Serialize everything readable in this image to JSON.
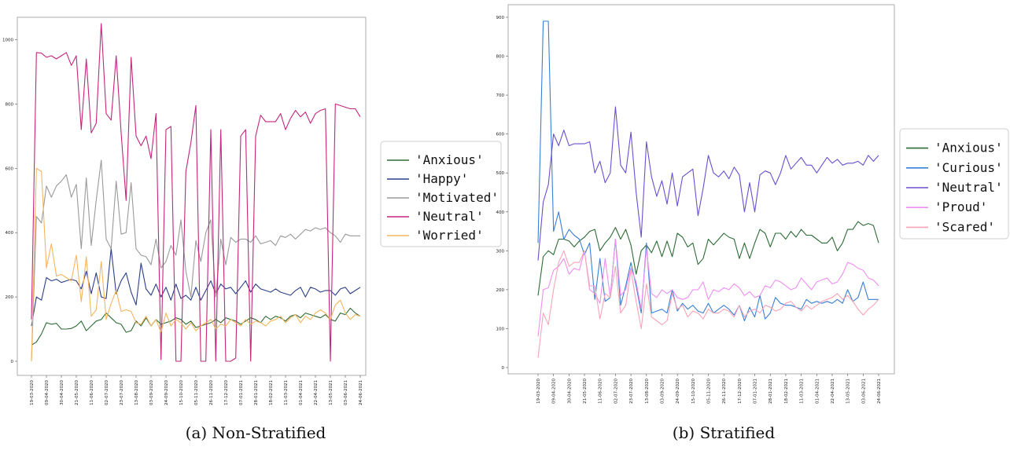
{
  "captions": [
    "(a) Non-Stratified",
    "(b) Stratified"
  ],
  "chart_data": [
    {
      "type": "line",
      "title": "",
      "xlabel": "",
      "ylabel": "",
      "ylim": [
        0,
        1050
      ],
      "yticks": [
        0,
        200,
        400,
        600,
        800,
        1000
      ],
      "x_tick_labels": [
        "19-03-2020",
        "09-04-2020",
        "30-04-2020",
        "21-05-2020",
        "11-06-2020",
        "02-07-2020",
        "23-07-2020",
        "13-08-2020",
        "03-09-2020",
        "24-09-2020",
        "15-10-2020",
        "05-11-2020",
        "26-11-2020",
        "17-12-2020",
        "07-01-2021",
        "28-01-2021",
        "18-02-2021",
        "11-03-2021",
        "01-04-2021",
        "22-04-2021",
        "13-05-2021",
        "03-06-2021",
        "24-06-2021"
      ],
      "n_points": 67,
      "legend": "right",
      "grid": false,
      "series": [
        {
          "name": "'Anxious'",
          "color": "#2e6b36",
          "values": [
            50,
            60,
            85,
            120,
            115,
            118,
            100,
            100,
            102,
            110,
            125,
            95,
            110,
            125,
            130,
            150,
            135,
            120,
            115,
            90,
            95,
            125,
            110,
            135,
            110,
            130,
            115,
            120,
            125,
            135,
            130,
            115,
            125,
            105,
            110,
            115,
            120,
            130,
            120,
            135,
            130,
            125,
            115,
            125,
            135,
            130,
            120,
            140,
            130,
            140,
            135,
            125,
            140,
            145,
            135,
            150,
            145,
            140,
            135,
            145,
            130,
            125,
            150,
            145,
            165,
            150,
            140
          ]
        },
        {
          "name": "'Happy'",
          "color": "#2c3f87",
          "values": [
            110,
            200,
            190,
            260,
            250,
            255,
            245,
            250,
            255,
            250,
            225,
            280,
            210,
            275,
            200,
            195,
            350,
            210,
            250,
            275,
            215,
            175,
            305,
            225,
            205,
            240,
            200,
            230,
            190,
            240,
            195,
            205,
            190,
            230,
            190,
            220,
            250,
            210,
            240,
            225,
            230,
            210,
            230,
            250,
            215,
            240,
            225,
            220,
            215,
            225,
            215,
            210,
            205,
            220,
            230,
            200,
            230,
            225,
            215,
            220,
            220,
            205,
            225,
            230,
            210,
            220,
            230
          ]
        },
        {
          "name": "'Motivated'",
          "color": "#9a9a9a",
          "values": [
            0,
            450,
            430,
            545,
            510,
            545,
            560,
            580,
            510,
            550,
            350,
            570,
            360,
            500,
            625,
            380,
            350,
            560,
            395,
            400,
            555,
            350,
            330,
            325,
            300,
            380,
            290,
            310,
            360,
            330,
            440,
            280,
            200,
            375,
            310,
            400,
            440,
            200,
            380,
            300,
            385,
            370,
            380,
            380,
            370,
            390,
            365,
            370,
            375,
            360,
            390,
            385,
            395,
            380,
            395,
            410,
            405,
            415,
            410,
            415,
            400,
            390,
            370,
            395,
            390,
            390,
            390
          ]
        },
        {
          "name": "'Neutral'",
          "color": "#c2267d",
          "values": [
            130,
            960,
            958,
            945,
            950,
            940,
            950,
            960,
            920,
            950,
            720,
            940,
            710,
            740,
            1050,
            770,
            750,
            950,
            710,
            500,
            945,
            700,
            670,
            700,
            630,
            770,
            5,
            720,
            730,
            0,
            0,
            590,
            680,
            795,
            0,
            0,
            720,
            0,
            720,
            0,
            0,
            10,
            700,
            720,
            0,
            700,
            765,
            745,
            745,
            745,
            770,
            720,
            755,
            780,
            760,
            775,
            740,
            770,
            780,
            785,
            0,
            800,
            795,
            790,
            785,
            785,
            760
          ]
        },
        {
          "name": "'Worried'",
          "color": "#f5b55f",
          "values": [
            0,
            600,
            590,
            290,
            365,
            265,
            270,
            260,
            250,
            330,
            185,
            325,
            140,
            160,
            310,
            130,
            180,
            220,
            155,
            160,
            155,
            120,
            115,
            140,
            110,
            130,
            90,
            150,
            110,
            130,
            120,
            100,
            120,
            95,
            110,
            120,
            130,
            100,
            115,
            110,
            130,
            120,
            110,
            130,
            115,
            125,
            120,
            110,
            125,
            130,
            140,
            120,
            135,
            145,
            120,
            140,
            130,
            150,
            160,
            150,
            130,
            175,
            190,
            150,
            130,
            145,
            140
          ]
        }
      ]
    },
    {
      "type": "line",
      "title": "",
      "xlabel": "",
      "ylabel": "",
      "ylim": [
        0,
        900
      ],
      "yticks": [
        0,
        100,
        200,
        300,
        400,
        500,
        600,
        700,
        800,
        900
      ],
      "x_tick_labels": [
        "19-03-2020",
        "09-04-2020",
        "30-04-2020",
        "21-05-2020",
        "11-06-2020",
        "02-07-2020",
        "23-07-2020",
        "13-08-2020",
        "03-09-2020",
        "24-09-2020",
        "15-10-2020",
        "05-11-2020",
        "26-11-2020",
        "17-12-2020",
        "07-01-2021",
        "28-01-2021",
        "18-02-2021",
        "11-03-2021",
        "01-04-2021",
        "22-04-2021",
        "13-05-2021",
        "03-06-2021",
        "24-06-2021"
      ],
      "n_points": 67,
      "legend": "right",
      "grid": false,
      "series": [
        {
          "name": "'Anxious'",
          "color": "#2e6b36",
          "values": [
            185,
            285,
            300,
            290,
            330,
            330,
            325,
            310,
            325,
            335,
            350,
            355,
            300,
            320,
            335,
            360,
            330,
            355,
            315,
            240,
            300,
            315,
            295,
            325,
            285,
            325,
            285,
            345,
            335,
            310,
            320,
            265,
            280,
            330,
            315,
            330,
            345,
            335,
            330,
            280,
            320,
            280,
            320,
            355,
            345,
            310,
            345,
            345,
            330,
            350,
            335,
            355,
            340,
            340,
            330,
            320,
            320,
            335,
            300,
            320,
            355,
            355,
            375,
            365,
            370,
            365,
            320
          ]
        },
        {
          "name": "'Curious'",
          "color": "#3a7fd6",
          "values": [
            320,
            890,
            890,
            350,
            400,
            330,
            355,
            340,
            330,
            290,
            320,
            175,
            280,
            170,
            180,
            330,
            160,
            210,
            270,
            210,
            140,
            320,
            140,
            145,
            150,
            140,
            200,
            145,
            165,
            150,
            160,
            145,
            140,
            165,
            140,
            150,
            160,
            150,
            135,
            160,
            120,
            155,
            130,
            185,
            125,
            140,
            180,
            165,
            160,
            160,
            155,
            150,
            175,
            165,
            170,
            165,
            170,
            165,
            175,
            165,
            200,
            170,
            180,
            220,
            175,
            175,
            175
          ]
        },
        {
          "name": "'Neutral'",
          "color": "#6a4fcf",
          "values": [
            275,
            425,
            470,
            600,
            570,
            610,
            570,
            575,
            575,
            575,
            580,
            500,
            530,
            475,
            500,
            670,
            520,
            500,
            605,
            450,
            335,
            580,
            490,
            440,
            480,
            420,
            500,
            415,
            490,
            500,
            510,
            390,
            460,
            545,
            500,
            490,
            505,
            485,
            515,
            495,
            400,
            475,
            400,
            495,
            505,
            500,
            470,
            500,
            545,
            510,
            525,
            540,
            520,
            520,
            500,
            520,
            540,
            525,
            535,
            520,
            525,
            525,
            530,
            520,
            545,
            530,
            545
          ]
        },
        {
          "name": "'Proud'",
          "color": "#f08ef0",
          "values": [
            80,
            200,
            205,
            250,
            260,
            280,
            240,
            255,
            250,
            300,
            200,
            190,
            165,
            280,
            180,
            330,
            185,
            200,
            255,
            220,
            150,
            305,
            190,
            180,
            200,
            190,
            200,
            180,
            175,
            180,
            200,
            200,
            220,
            175,
            200,
            195,
            205,
            200,
            215,
            205,
            185,
            195,
            180,
            185,
            210,
            205,
            225,
            220,
            210,
            200,
            205,
            230,
            215,
            200,
            220,
            225,
            230,
            215,
            220,
            240,
            270,
            265,
            255,
            250,
            230,
            225,
            210
          ]
        },
        {
          "name": "'Scared'",
          "color": "#f7a4b8",
          "values": [
            25,
            140,
            110,
            200,
            270,
            300,
            260,
            270,
            270,
            300,
            210,
            210,
            125,
            190,
            180,
            260,
            140,
            160,
            250,
            170,
            100,
            215,
            130,
            120,
            110,
            120,
            190,
            150,
            160,
            130,
            145,
            140,
            125,
            150,
            140,
            140,
            150,
            145,
            130,
            160,
            130,
            145,
            150,
            140,
            160,
            155,
            145,
            150,
            165,
            170,
            155,
            145,
            160,
            150,
            160,
            170,
            175,
            180,
            190,
            175,
            185,
            170,
            150,
            135,
            150,
            160,
            175
          ]
        }
      ]
    }
  ]
}
